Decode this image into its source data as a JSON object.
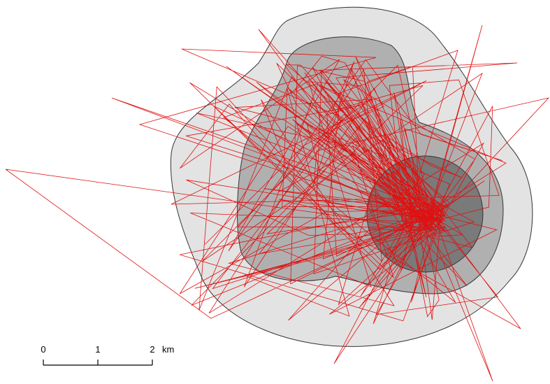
{
  "scale_bar": {
    "labels": [
      "0",
      "1",
      "2"
    ],
    "unit": "km"
  }
}
